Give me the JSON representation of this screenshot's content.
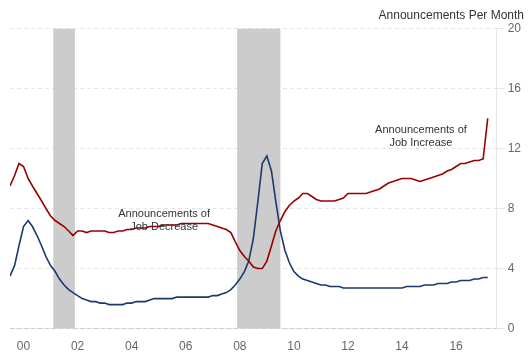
{
  "chart_data": {
    "type": "line",
    "ylabel": "Announcements Per Month",
    "x": [
      1999.5,
      1999.67,
      1999.83,
      2000.0,
      2000.17,
      2000.33,
      2000.5,
      2000.67,
      2000.83,
      2001.0,
      2001.17,
      2001.33,
      2001.5,
      2001.67,
      2001.83,
      2002.0,
      2002.17,
      2002.33,
      2002.5,
      2002.67,
      2002.83,
      2003.0,
      2003.17,
      2003.33,
      2003.5,
      2003.67,
      2003.83,
      2004.0,
      2004.17,
      2004.33,
      2004.5,
      2004.67,
      2004.83,
      2005.0,
      2005.17,
      2005.33,
      2005.5,
      2005.67,
      2005.83,
      2006.0,
      2006.17,
      2006.33,
      2006.5,
      2006.67,
      2006.83,
      2007.0,
      2007.17,
      2007.33,
      2007.5,
      2007.67,
      2007.83,
      2008.0,
      2008.17,
      2008.33,
      2008.5,
      2008.67,
      2008.83,
      2009.0,
      2009.17,
      2009.33,
      2009.5,
      2009.67,
      2009.83,
      2010.0,
      2010.17,
      2010.33,
      2010.5,
      2010.67,
      2010.83,
      2011.0,
      2011.17,
      2011.33,
      2011.5,
      2011.67,
      2011.83,
      2012.0,
      2012.17,
      2012.33,
      2012.5,
      2012.67,
      2012.83,
      2013.0,
      2013.17,
      2013.33,
      2013.5,
      2013.67,
      2013.83,
      2014.0,
      2014.17,
      2014.33,
      2014.5,
      2014.67,
      2014.83,
      2015.0,
      2015.17,
      2015.33,
      2015.5,
      2015.67,
      2015.83,
      2016.0,
      2016.17,
      2016.33,
      2016.5,
      2016.67,
      2016.83,
      2017.0,
      2017.17
    ],
    "series": [
      {
        "color": "#990000",
        "values": [
          9.5,
          10.2,
          11.0,
          10.8,
          10.0,
          9.5,
          9.0,
          8.5,
          8.0,
          7.5,
          7.2,
          7.0,
          6.8,
          6.5,
          6.2,
          6.5,
          6.5,
          6.4,
          6.5,
          6.5,
          6.5,
          6.5,
          6.4,
          6.4,
          6.5,
          6.5,
          6.6,
          6.6,
          6.7,
          6.7,
          6.7,
          6.8,
          6.8,
          6.8,
          6.9,
          6.9,
          6.9,
          6.9,
          7.0,
          7.0,
          7.0,
          7.0,
          7.0,
          7.0,
          7.0,
          6.9,
          6.8,
          6.7,
          6.6,
          6.4,
          5.8,
          5.2,
          4.8,
          4.5,
          4.1,
          4.0,
          4.0,
          4.5,
          5.5,
          6.5,
          7.2,
          7.8,
          8.2,
          8.5,
          8.7,
          9.0,
          9.0,
          8.8,
          8.6,
          8.5,
          8.5,
          8.5,
          8.5,
          8.6,
          8.7,
          9.0,
          9.0,
          9.0,
          9.0,
          9.0,
          9.1,
          9.2,
          9.3,
          9.5,
          9.7,
          9.8,
          9.9,
          10.0,
          10.0,
          10.0,
          9.9,
          9.8,
          9.9,
          10.0,
          10.1,
          10.2,
          10.3,
          10.5,
          10.6,
          10.8,
          11.0,
          11.0,
          11.1,
          11.2,
          11.2,
          11.3,
          14.0
        ]
      },
      {
        "color": "#1a3a6b",
        "values": [
          3.5,
          4.2,
          5.5,
          6.8,
          7.2,
          6.8,
          6.2,
          5.5,
          4.8,
          4.2,
          3.8,
          3.3,
          2.9,
          2.6,
          2.4,
          2.2,
          2.0,
          1.9,
          1.8,
          1.8,
          1.7,
          1.7,
          1.6,
          1.6,
          1.6,
          1.6,
          1.7,
          1.7,
          1.8,
          1.8,
          1.8,
          1.9,
          2.0,
          2.0,
          2.0,
          2.0,
          2.0,
          2.1,
          2.1,
          2.1,
          2.1,
          2.1,
          2.1,
          2.1,
          2.1,
          2.2,
          2.2,
          2.3,
          2.4,
          2.6,
          2.9,
          3.3,
          3.8,
          4.5,
          6.0,
          8.5,
          11.0,
          11.5,
          10.5,
          8.5,
          6.5,
          5.2,
          4.4,
          3.8,
          3.5,
          3.3,
          3.2,
          3.1,
          3.0,
          2.9,
          2.9,
          2.8,
          2.8,
          2.8,
          2.7,
          2.7,
          2.7,
          2.7,
          2.7,
          2.7,
          2.7,
          2.7,
          2.7,
          2.7,
          2.7,
          2.7,
          2.7,
          2.7,
          2.8,
          2.8,
          2.8,
          2.8,
          2.9,
          2.9,
          2.9,
          3.0,
          3.0,
          3.0,
          3.1,
          3.1,
          3.2,
          3.2,
          3.2,
          3.3,
          3.3,
          3.4,
          3.4
        ]
      }
    ],
    "xlim": [
      1999.5,
      2017.5
    ],
    "xticks": [
      {
        "value": 2000,
        "label": "00"
      },
      {
        "value": 2002,
        "label": "02"
      },
      {
        "value": 2004,
        "label": "04"
      },
      {
        "value": 2006,
        "label": "06"
      },
      {
        "value": 2008,
        "label": "08"
      },
      {
        "value": 2010,
        "label": "10"
      },
      {
        "value": 2012,
        "label": "12"
      },
      {
        "value": 2014,
        "label": "14"
      },
      {
        "value": 2016,
        "label": "16"
      }
    ],
    "ylim": [
      0,
      20
    ],
    "yticks": [
      0,
      4,
      8,
      12,
      16,
      20
    ],
    "grid": "y",
    "legend": false,
    "shaded_ranges": [
      {
        "x": [
          2001.1,
          2001.9
        ],
        "color": "#CCCCCC"
      },
      {
        "x": [
          2007.9,
          2009.5
        ],
        "color": "#CCCCCC"
      }
    ],
    "annotations": [
      {
        "text": "Announcements of\nJob Decrease",
        "x": 2005.2,
        "y": 7.2,
        "color": "#333333"
      },
      {
        "text": "Announcements of\nJob Increase",
        "x": 2014.7,
        "y": 12.8,
        "color": "#333333"
      }
    ]
  }
}
